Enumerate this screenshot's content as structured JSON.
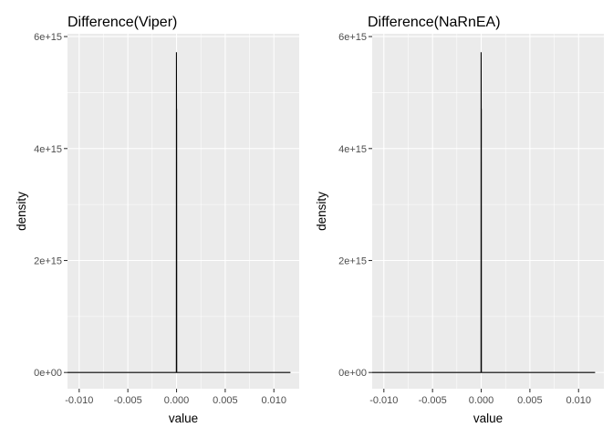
{
  "chart_data": [
    {
      "type": "line",
      "title": "Difference(Viper)",
      "xlabel": "value",
      "ylabel": "density",
      "xlim": [
        -0.0112,
        0.0126
      ],
      "ylim": [
        -290000000000000.0,
        6050000000000000.0
      ],
      "x_ticks": [
        -0.01,
        -0.005,
        0.0,
        0.005,
        0.01
      ],
      "x_tick_labels": [
        "-0.010",
        "-0.005",
        "0.000",
        "0.005",
        "0.010"
      ],
      "y_ticks": [
        0,
        2000000000000000.0,
        4000000000000000.0,
        6000000000000000.0
      ],
      "y_tick_labels": [
        "0e+00",
        "2e+15",
        "4e+15",
        "6e+15"
      ],
      "grid": true,
      "series": [
        {
          "x": [
            -0.0112,
            -0.0001,
            -2e-05,
            -1e-05,
            0.0,
            1e-05,
            2e-05,
            0.0001,
            0.0117
          ],
          "y": [
            0,
            0,
            0,
            5720000000000000.0,
            4700000000000000.0,
            4700000000000000.0,
            0,
            0,
            0
          ]
        }
      ]
    },
    {
      "type": "line",
      "title": "Difference(NaRnEA)",
      "xlabel": "value",
      "ylabel": "density",
      "xlim": [
        -0.0112,
        0.0126
      ],
      "ylim": [
        -290000000000000.0,
        6050000000000000.0
      ],
      "x_ticks": [
        -0.01,
        -0.005,
        0.0,
        0.005,
        0.01
      ],
      "x_tick_labels": [
        "-0.010",
        "-0.005",
        "0.000",
        "0.005",
        "0.010"
      ],
      "y_ticks": [
        0,
        2000000000000000.0,
        4000000000000000.0,
        6000000000000000.0
      ],
      "y_tick_labels": [
        "0e+00",
        "2e+15",
        "4e+15",
        "6e+15"
      ],
      "grid": true,
      "series": [
        {
          "x": [
            -0.0112,
            -0.0001,
            -2e-05,
            -1e-05,
            0.0,
            1e-05,
            2e-05,
            0.0001,
            0.0117
          ],
          "y": [
            0,
            0,
            0,
            5720000000000000.0,
            4700000000000000.0,
            4700000000000000.0,
            0,
            0,
            0
          ]
        }
      ]
    }
  ]
}
